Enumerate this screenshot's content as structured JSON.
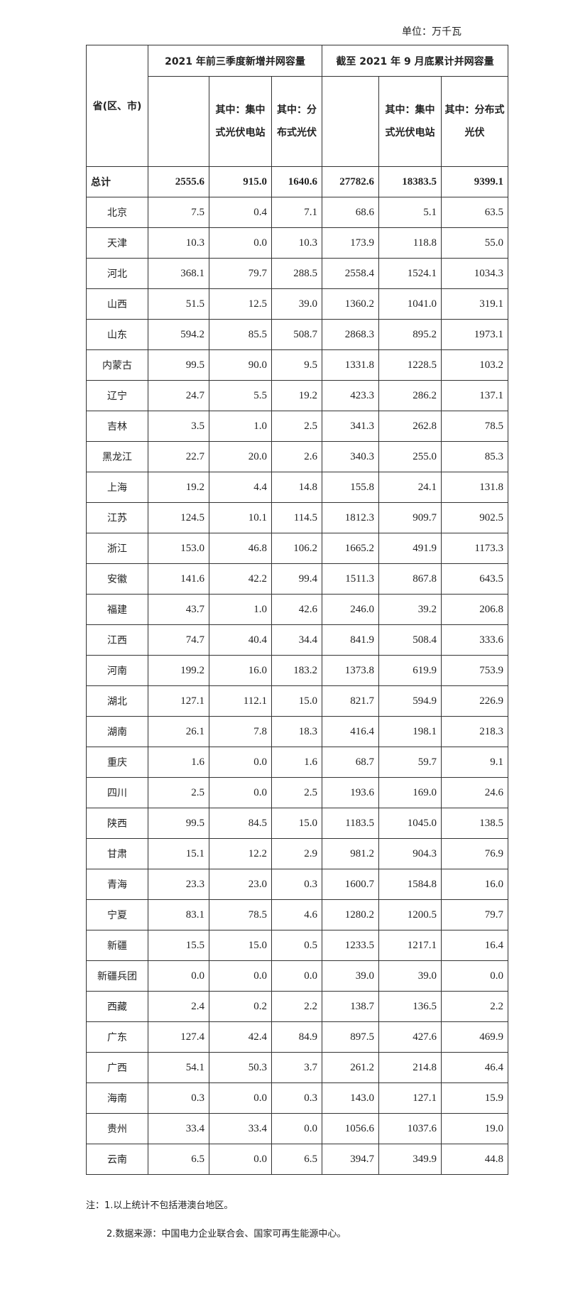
{
  "unit_label": "单位：万千瓦",
  "header": {
    "region": "省(区、市)",
    "group1": "2021 年前三季度新增并网容量",
    "group2": "截至 2021 年 9 月底累计并网容量",
    "group1_centralized": "其中：集中式光伏电站",
    "group1_distributed": "其中：分布式光伏",
    "group2_centralized": "其中：集中式光伏电站",
    "group2_distributed": "其中：分布式光伏"
  },
  "rows": [
    [
      "总计",
      "2555.6",
      "915.0",
      "1640.6",
      "27782.6",
      "18383.5",
      "9399.1"
    ],
    [
      "北京",
      "7.5",
      "0.4",
      "7.1",
      "68.6",
      "5.1",
      "63.5"
    ],
    [
      "天津",
      "10.3",
      "0.0",
      "10.3",
      "173.9",
      "118.8",
      "55.0"
    ],
    [
      "河北",
      "368.1",
      "79.7",
      "288.5",
      "2558.4",
      "1524.1",
      "1034.3"
    ],
    [
      "山西",
      "51.5",
      "12.5",
      "39.0",
      "1360.2",
      "1041.0",
      "319.1"
    ],
    [
      "山东",
      "594.2",
      "85.5",
      "508.7",
      "2868.3",
      "895.2",
      "1973.1"
    ],
    [
      "内蒙古",
      "99.5",
      "90.0",
      "9.5",
      "1331.8",
      "1228.5",
      "103.2"
    ],
    [
      "辽宁",
      "24.7",
      "5.5",
      "19.2",
      "423.3",
      "286.2",
      "137.1"
    ],
    [
      "吉林",
      "3.5",
      "1.0",
      "2.5",
      "341.3",
      "262.8",
      "78.5"
    ],
    [
      "黑龙江",
      "22.7",
      "20.0",
      "2.6",
      "340.3",
      "255.0",
      "85.3"
    ],
    [
      "上海",
      "19.2",
      "4.4",
      "14.8",
      "155.8",
      "24.1",
      "131.8"
    ],
    [
      "江苏",
      "124.5",
      "10.1",
      "114.5",
      "1812.3",
      "909.7",
      "902.5"
    ],
    [
      "浙江",
      "153.0",
      "46.8",
      "106.2",
      "1665.2",
      "491.9",
      "1173.3"
    ],
    [
      "安徽",
      "141.6",
      "42.2",
      "99.4",
      "1511.3",
      "867.8",
      "643.5"
    ],
    [
      "福建",
      "43.7",
      "1.0",
      "42.6",
      "246.0",
      "39.2",
      "206.8"
    ],
    [
      "江西",
      "74.7",
      "40.4",
      "34.4",
      "841.9",
      "508.4",
      "333.6"
    ],
    [
      "河南",
      "199.2",
      "16.0",
      "183.2",
      "1373.8",
      "619.9",
      "753.9"
    ],
    [
      "湖北",
      "127.1",
      "112.1",
      "15.0",
      "821.7",
      "594.9",
      "226.9"
    ],
    [
      "湖南",
      "26.1",
      "7.8",
      "18.3",
      "416.4",
      "198.1",
      "218.3"
    ],
    [
      "重庆",
      "1.6",
      "0.0",
      "1.6",
      "68.7",
      "59.7",
      "9.1"
    ],
    [
      "四川",
      "2.5",
      "0.0",
      "2.5",
      "193.6",
      "169.0",
      "24.6"
    ],
    [
      "陕西",
      "99.5",
      "84.5",
      "15.0",
      "1183.5",
      "1045.0",
      "138.5"
    ],
    [
      "甘肃",
      "15.1",
      "12.2",
      "2.9",
      "981.2",
      "904.3",
      "76.9"
    ],
    [
      "青海",
      "23.3",
      "23.0",
      "0.3",
      "1600.7",
      "1584.8",
      "16.0"
    ],
    [
      "宁夏",
      "83.1",
      "78.5",
      "4.6",
      "1280.2",
      "1200.5",
      "79.7"
    ],
    [
      "新疆",
      "15.5",
      "15.0",
      "0.5",
      "1233.5",
      "1217.1",
      "16.4"
    ],
    [
      "新疆兵团",
      "0.0",
      "0.0",
      "0.0",
      "39.0",
      "39.0",
      "0.0"
    ],
    [
      "西藏",
      "2.4",
      "0.2",
      "2.2",
      "138.7",
      "136.5",
      "2.2"
    ],
    [
      "广东",
      "127.4",
      "42.4",
      "84.9",
      "897.5",
      "427.6",
      "469.9"
    ],
    [
      "广西",
      "54.1",
      "50.3",
      "3.7",
      "261.2",
      "214.8",
      "46.4"
    ],
    [
      "海南",
      "0.3",
      "0.0",
      "0.3",
      "143.0",
      "127.1",
      "15.9"
    ],
    [
      "贵州",
      "33.4",
      "33.4",
      "0.0",
      "1056.6",
      "1037.6",
      "19.0"
    ],
    [
      "云南",
      "6.5",
      "0.0",
      "6.5",
      "394.7",
      "349.9",
      "44.8"
    ]
  ],
  "notes": {
    "note1": "注：1.以上统计不包括港澳台地区。",
    "note2": "2.数据来源：中国电力企业联合会、国家可再生能源中心。"
  }
}
